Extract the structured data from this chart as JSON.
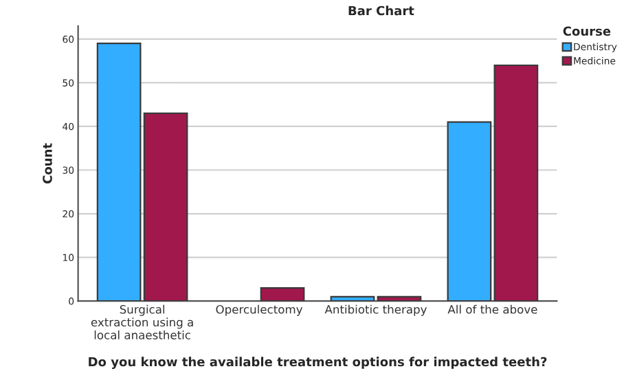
{
  "chart_data": {
    "type": "bar",
    "title": "Bar Chart",
    "xlabel": "Do you know the available treatment options for impacted teeth?",
    "ylabel": "Count",
    "legend_title": "Course",
    "categories": [
      "Surgical extraction using a local anaesthetic",
      "Operculectomy",
      "Antibiotic therapy",
      "All of the above"
    ],
    "series": [
      {
        "name": "Dentistry",
        "color": "#33adff",
        "values": [
          59,
          0,
          1,
          41
        ]
      },
      {
        "name": "Medicine",
        "color": "#a0184c",
        "values": [
          43,
          3,
          1,
          54
        ]
      }
    ],
    "ylim": [
      0,
      63
    ],
    "yticks": [
      0,
      10,
      20,
      30,
      40,
      50,
      60
    ],
    "grid": "y",
    "legend": "top right"
  }
}
